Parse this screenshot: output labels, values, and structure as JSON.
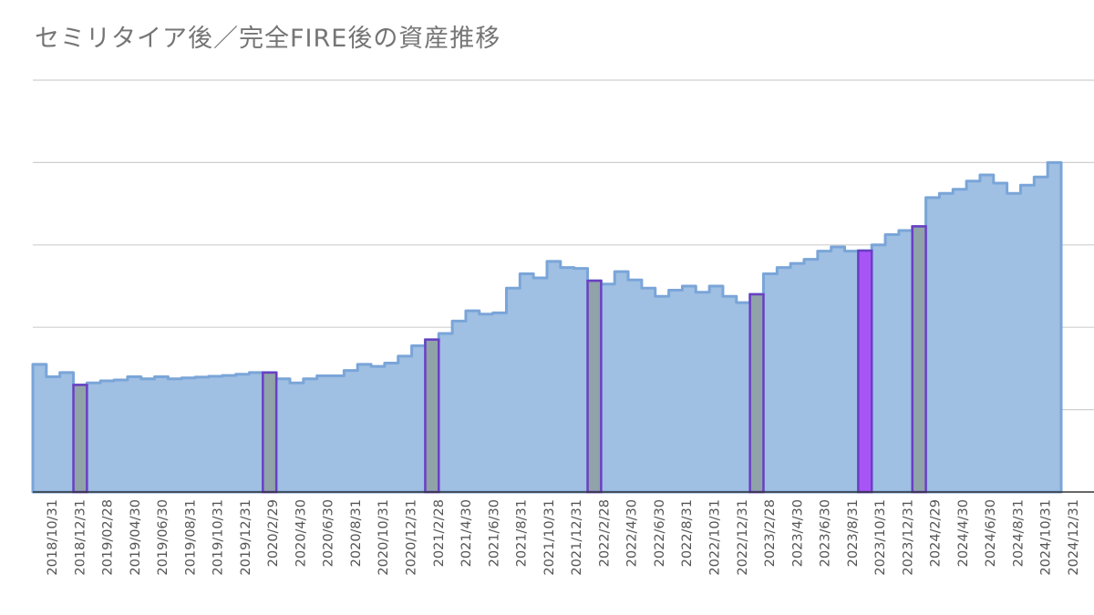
{
  "title": "セミリタイア後／完全FIRE後の資産推移",
  "colors": {
    "area_fill": "#9fbfe3",
    "area_stroke": "#7aa5d8",
    "highlight_year_end": "#8fa3a8",
    "highlight_special": "#a855f7",
    "highlight_outline": "#6a3fc4",
    "grid": "#cfcfcf",
    "axis": "#333333"
  },
  "chart_data": {
    "type": "area",
    "title": "セミリタイア後／完全FIRE後の資産推移",
    "xlabel": "",
    "ylabel": "",
    "y_tick_labels_shown": false,
    "ylim": [
      0,
      100
    ],
    "grid": true,
    "step": true,
    "x_tick_labels": [
      "2018/10/31",
      "2018/12/31",
      "2019/02/28",
      "2019/04/30",
      "2019/06/30",
      "2019/08/31",
      "2019/10/31",
      "2019/12/31",
      "2020/2/29",
      "2020/4/30",
      "2020/6/30",
      "2020/8/31",
      "2020/10/31",
      "2020/12/31",
      "2021/2/28",
      "2021/4/30",
      "2021/6/30",
      "2021/8/31",
      "2021/10/31",
      "2021/12/31",
      "2022/2/28",
      "2022/4/30",
      "2022/6/30",
      "2022/8/31",
      "2022/10/31",
      "2022/12/31",
      "2023/2/28",
      "2023/4/30",
      "2023/6/30",
      "2023/8/31",
      "2023/10/31",
      "2023/12/31",
      "2024/2/29",
      "2024/4/30",
      "2024/6/30",
      "2024/8/31",
      "2024/10/31",
      "2024/12/31"
    ],
    "series": [
      {
        "name": "",
        "values": [
          31,
          28,
          29,
          26,
          26.5,
          27,
          27.2,
          28,
          27.5,
          28,
          27.5,
          27.7,
          27.9,
          28.1,
          28.3,
          28.6,
          29,
          29,
          27.5,
          26.5,
          27.5,
          28.2,
          28.2,
          29.5,
          31,
          30.5,
          31.3,
          33,
          35.5,
          37,
          38.5,
          41.5,
          44,
          43.2,
          43.5,
          49.5,
          53,
          52,
          56,
          54.5,
          54.3,
          51.3,
          50.5,
          53.5,
          51.5,
          49.5,
          47.5,
          49,
          50,
          48.5,
          50,
          47.5,
          46,
          48,
          53,
          54.5,
          55.5,
          56.5,
          58.5,
          59.5,
          58.5,
          58.6,
          60,
          62.5,
          63.5,
          64.5,
          71.5,
          72.5,
          73.5,
          75.5,
          77,
          75,
          72.5,
          74.5,
          76.5,
          80
        ]
      }
    ],
    "highlight_indices": [
      3,
      17,
      29,
      41,
      53,
      61,
      65
    ],
    "special_highlight_index": 61
  }
}
